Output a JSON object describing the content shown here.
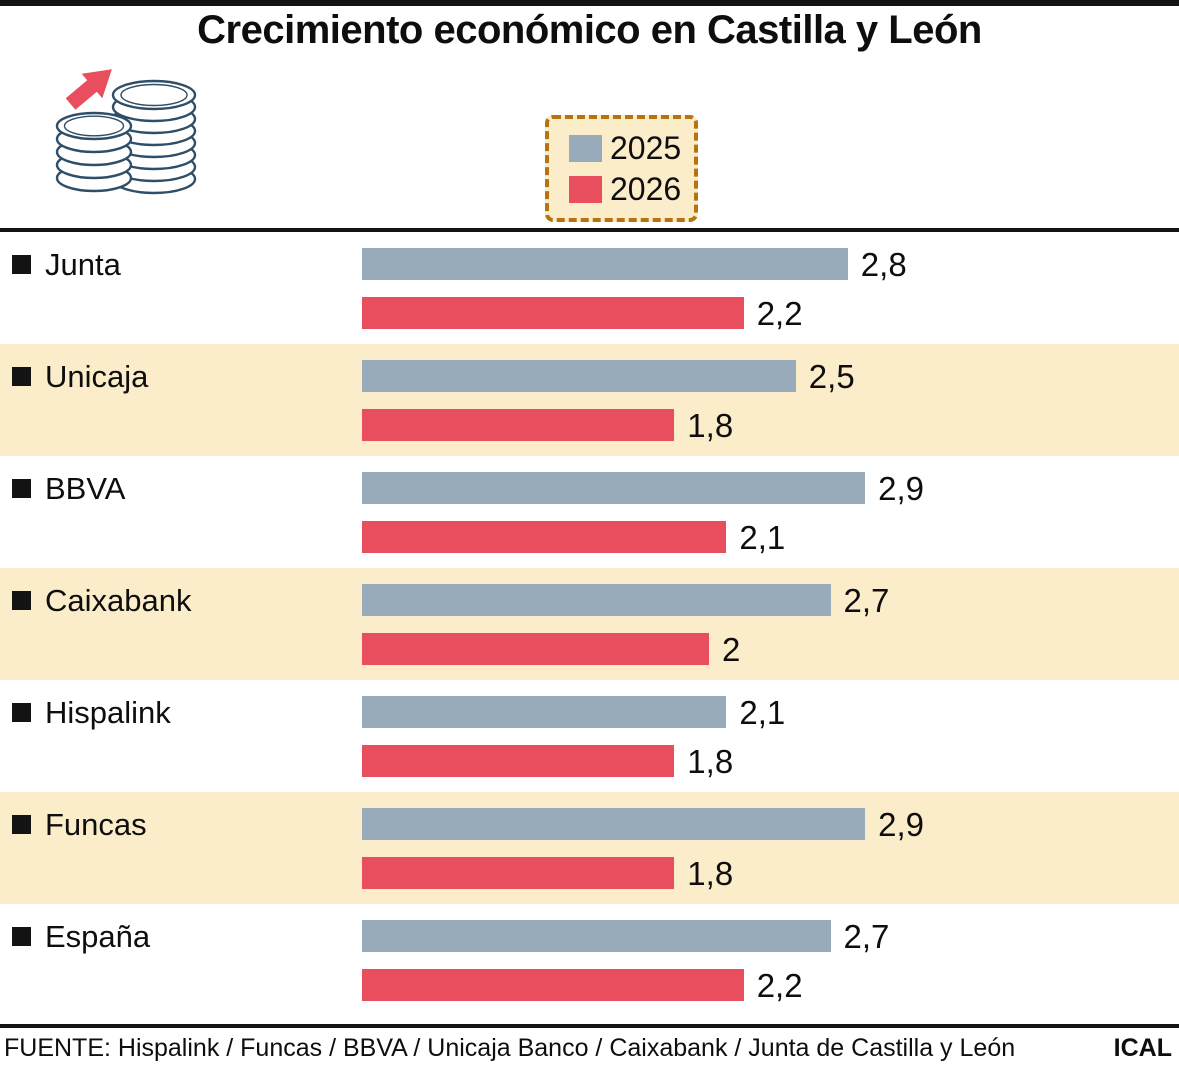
{
  "title": "Crecimiento económico en Castilla y León",
  "legend": {
    "items": [
      {
        "label": "2025",
        "color": "#97abbb"
      },
      {
        "label": "2026",
        "color": "#e84e5e"
      }
    ]
  },
  "chart_data": {
    "type": "bar",
    "orientation": "horizontal",
    "title": "Crecimiento económico en Castilla y León",
    "categories": [
      "Junta",
      "Unicaja",
      "BBVA",
      "Caixabank",
      "Hispalink",
      "Funcas",
      "España"
    ],
    "series": [
      {
        "name": "2025",
        "color": "#97abbb",
        "values": [
          2.8,
          2.5,
          2.9,
          2.7,
          2.1,
          2.9,
          2.7
        ],
        "labels": [
          "2,8",
          "2,5",
          "2,9",
          "2,7",
          "2,1",
          "2,9",
          "2,7"
        ]
      },
      {
        "name": "2026",
        "color": "#e84e5e",
        "values": [
          2.2,
          1.8,
          2.1,
          2.0,
          1.8,
          1.8,
          2.2
        ],
        "labels": [
          "2,2",
          "1,8",
          "2,1",
          "2",
          "1,8",
          "1,8",
          "2,2"
        ]
      }
    ],
    "xlim": [
      0,
      3
    ],
    "grid": false,
    "legend_position": "top-center",
    "value_label_format": "decimal-comma",
    "row_stripe_pattern": "odd-rows-beige"
  },
  "icon": {
    "name": "coin-stacks-growth-icon",
    "arrow_color": "#e84e5e",
    "outline_color": "#2f4e67"
  },
  "footer": {
    "source": "FUENTE: Hispalink / Funcas / BBVA / Unicaja Banco / Caixabank / Junta de Castilla y León",
    "credit": "ICAL"
  },
  "colors": {
    "stripe_background": "#fcedca",
    "legend_background": "#fcedca",
    "legend_border": "#b5740e",
    "rule": "#131313",
    "bar_2025": "#97abbb",
    "bar_2026": "#e84e5e"
  }
}
